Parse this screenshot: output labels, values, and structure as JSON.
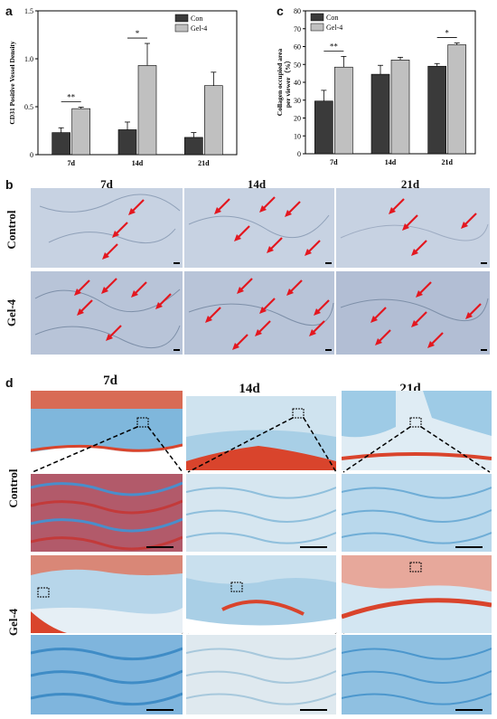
{
  "panels": {
    "a": {
      "letter": "a"
    },
    "b": {
      "letter": "b"
    },
    "c": {
      "letter": "c"
    },
    "d": {
      "letter": "d"
    }
  },
  "chart_data": [
    {
      "type": "bar",
      "panel": "a",
      "categories": [
        "7d",
        "14d",
        "21d"
      ],
      "series": [
        {
          "name": "Con",
          "color": "#3a3a3a",
          "values": [
            0.23,
            0.26,
            0.18
          ],
          "errors": [
            0.05,
            0.08,
            0.05
          ]
        },
        {
          "name": "Gel-4",
          "color": "#c0c0c0",
          "values": [
            0.48,
            0.93,
            0.72
          ],
          "errors": [
            0.015,
            0.23,
            0.14
          ]
        }
      ],
      "ylabel": "CD31 Positive Vessel Density",
      "ylim": [
        0,
        1.5
      ],
      "yticks": [
        "0",
        "0.5",
        "1.0",
        "1.5"
      ],
      "significance": [
        {
          "category": "7d",
          "label": "**"
        },
        {
          "category": "14d",
          "label": "*"
        }
      ],
      "legend": "top-right"
    },
    {
      "type": "bar",
      "panel": "c",
      "categories": [
        "7d",
        "14d",
        "21d"
      ],
      "series": [
        {
          "name": "Con",
          "color": "#3a3a3a",
          "values": [
            29.5,
            44.5,
            49
          ],
          "errors": [
            6,
            5,
            1.5
          ]
        },
        {
          "name": "Gel-4",
          "color": "#c0c0c0",
          "values": [
            48.5,
            52.5,
            61
          ],
          "errors": [
            6,
            1.5,
            1
          ]
        }
      ],
      "ylabel": "Collagen occupied area per viewer（%）",
      "ylim": [
        0,
        80
      ],
      "yticks": [
        "0",
        "10",
        "20",
        "30",
        "40",
        "50",
        "60",
        "70",
        "80"
      ],
      "significance": [
        {
          "category": "7d",
          "label": "**"
        },
        {
          "category": "21d",
          "label": "*"
        }
      ],
      "legend": "top-left"
    }
  ],
  "panel_b": {
    "columns": [
      "7d",
      "14d",
      "21d"
    ],
    "rows": [
      "Control",
      "Gel-4"
    ]
  },
  "panel_d": {
    "columns": [
      "7d",
      "14d",
      "21d"
    ],
    "rows": [
      "Control",
      "Gel-4"
    ]
  },
  "colors": {
    "ihc_stain": "#c7d2e2",
    "arrow": "#e3171f",
    "masson_blue": "#5da6d3",
    "masson_red": "#d9442c"
  }
}
